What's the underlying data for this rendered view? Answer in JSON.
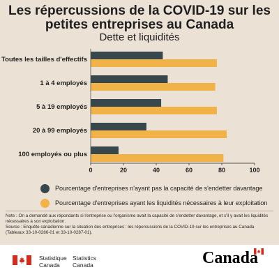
{
  "header": {
    "title": "Les répercussions de la COVID-19 sur les petites entreprises au Canada",
    "subtitle": "Dette et liquidités"
  },
  "chart_data": {
    "type": "bar",
    "orientation": "horizontal",
    "categories": [
      "Toutes les tailles d'effectifs",
      "1 à 4 employés",
      "5 à 19 employés",
      "20 à 99 employés",
      "100 employés ou plus"
    ],
    "series": [
      {
        "name": "Pourcentage d'entreprises n'ayant pas la capacité de s'endetter davantage",
        "color": "#37474b",
        "values": [
          44,
          47,
          43,
          34,
          17
        ]
      },
      {
        "name": "Pourcentage d'entreprises ayant les liquidités nécessaires à leur exploitation",
        "color": "#f1b347",
        "values": [
          77,
          76,
          77,
          83,
          81
        ]
      }
    ],
    "xlim": [
      0,
      100
    ],
    "xticks": [
      0,
      20,
      40,
      60,
      80,
      100
    ],
    "grid": false,
    "legend_position": "bottom"
  },
  "notes": {
    "note": "Note : On a demandé aux répondants si l'entreprise ou l'organisme avait la capacité de s'endetter davantage, et s'il y avait les liquidités nécessaires à son exploitation.",
    "source": "Source : Enquête canadienne sur la situation des entreprises : les répercussions de la COVID-19 sur les entreprises au Canada (Tableaux 33-10-0286-01 et 33-10-0287-01)."
  },
  "footer": {
    "agency_fr_1": "Statistique",
    "agency_fr_2": "Canada",
    "agency_en_1": "Statistics",
    "agency_en_2": "Canada",
    "wordmark": "Canada"
  }
}
